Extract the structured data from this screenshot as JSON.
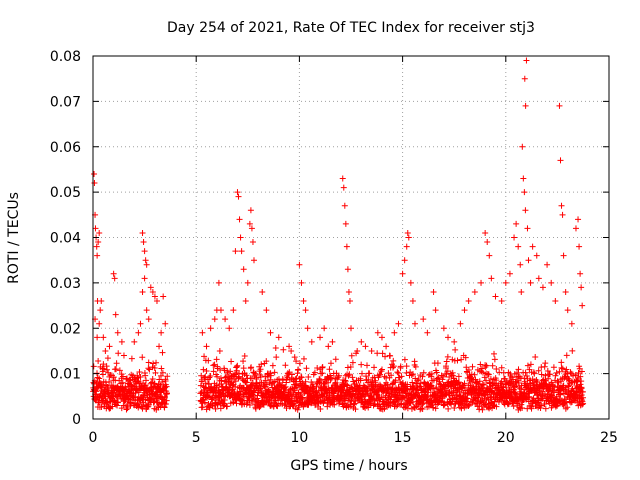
{
  "chart_data": {
    "type": "scatter",
    "title": "Day 254 of 2021, Rate Of TEC Index for receiver stj3",
    "xlabel": "GPS time / hours",
    "ylabel": "ROTI / TECUs",
    "xlim": [
      0,
      25
    ],
    "ylim": [
      0,
      0.08
    ],
    "xticks": [
      0,
      5,
      10,
      15,
      20,
      25
    ],
    "yticks": [
      0,
      0.01,
      0.02,
      0.03,
      0.04,
      0.05,
      0.06,
      0.07,
      0.08
    ],
    "xtick_labels": [
      "0",
      "5",
      "10",
      "15",
      "20",
      "25"
    ],
    "ytick_labels": [
      "0",
      "0.01",
      "0.02",
      "0.03",
      "0.04",
      "0.05",
      "0.06",
      "0.07",
      "0.08"
    ],
    "grid": true,
    "marker": "+",
    "color": "#ff0000",
    "series": [
      {
        "name": "ROTI",
        "points": [
          [
            0.05,
            0.054
          ],
          [
            0.07,
            0.052
          ],
          [
            0.1,
            0.045
          ],
          [
            0.12,
            0.042
          ],
          [
            0.15,
            0.04
          ],
          [
            0.18,
            0.038
          ],
          [
            0.2,
            0.036
          ],
          [
            0.25,
            0.039
          ],
          [
            0.3,
            0.041
          ],
          [
            0.22,
            0.026
          ],
          [
            0.35,
            0.024
          ],
          [
            0.4,
            0.026
          ],
          [
            0.1,
            0.022
          ],
          [
            0.2,
            0.018
          ],
          [
            0.3,
            0.021
          ],
          [
            0.5,
            0.018
          ],
          [
            0.6,
            0.015
          ],
          [
            0.8,
            0.016
          ],
          [
            1.0,
            0.032
          ],
          [
            1.05,
            0.031
          ],
          [
            1.1,
            0.023
          ],
          [
            1.2,
            0.019
          ],
          [
            1.4,
            0.017
          ],
          [
            1.5,
            0.014
          ],
          [
            2.4,
            0.041
          ],
          [
            2.45,
            0.039
          ],
          [
            2.5,
            0.037
          ],
          [
            2.55,
            0.035
          ],
          [
            2.6,
            0.034
          ],
          [
            2.5,
            0.031
          ],
          [
            2.4,
            0.028
          ],
          [
            2.6,
            0.024
          ],
          [
            2.7,
            0.022
          ],
          [
            2.8,
            0.029
          ],
          [
            2.9,
            0.028
          ],
          [
            3.0,
            0.027
          ],
          [
            3.1,
            0.026
          ],
          [
            3.4,
            0.027
          ],
          [
            3.5,
            0.021
          ],
          [
            2.3,
            0.021
          ],
          [
            2.2,
            0.019
          ],
          [
            2.0,
            0.017
          ],
          [
            3.2,
            0.016
          ],
          [
            3.3,
            0.019
          ],
          [
            5.3,
            0.019
          ],
          [
            5.5,
            0.016
          ],
          [
            5.7,
            0.02
          ],
          [
            5.9,
            0.022
          ],
          [
            6.0,
            0.024
          ],
          [
            6.1,
            0.03
          ],
          [
            6.2,
            0.024
          ],
          [
            6.4,
            0.022
          ],
          [
            6.6,
            0.02
          ],
          [
            6.8,
            0.024
          ],
          [
            6.9,
            0.037
          ],
          [
            7.0,
            0.05
          ],
          [
            7.05,
            0.049
          ],
          [
            7.1,
            0.044
          ],
          [
            7.15,
            0.04
          ],
          [
            7.2,
            0.037
          ],
          [
            7.3,
            0.033
          ],
          [
            7.4,
            0.026
          ],
          [
            7.5,
            0.03
          ],
          [
            7.6,
            0.043
          ],
          [
            7.65,
            0.046
          ],
          [
            7.7,
            0.042
          ],
          [
            7.75,
            0.039
          ],
          [
            7.8,
            0.035
          ],
          [
            8.2,
            0.028
          ],
          [
            8.4,
            0.024
          ],
          [
            8.6,
            0.019
          ],
          [
            9.0,
            0.018
          ],
          [
            9.5,
            0.016
          ],
          [
            9.6,
            0.015
          ],
          [
            10.0,
            0.034
          ],
          [
            10.1,
            0.03
          ],
          [
            10.2,
            0.026
          ],
          [
            10.3,
            0.024
          ],
          [
            10.4,
            0.02
          ],
          [
            10.6,
            0.017
          ],
          [
            11.0,
            0.018
          ],
          [
            11.2,
            0.02
          ],
          [
            11.4,
            0.016
          ],
          [
            11.6,
            0.017
          ],
          [
            12.1,
            0.053
          ],
          [
            12.15,
            0.051
          ],
          [
            12.2,
            0.047
          ],
          [
            12.25,
            0.043
          ],
          [
            12.3,
            0.038
          ],
          [
            12.35,
            0.033
          ],
          [
            12.4,
            0.028
          ],
          [
            12.45,
            0.026
          ],
          [
            12.5,
            0.02
          ],
          [
            12.8,
            0.015
          ],
          [
            13.0,
            0.017
          ],
          [
            13.2,
            0.016
          ],
          [
            13.5,
            0.015
          ],
          [
            13.8,
            0.019
          ],
          [
            14.0,
            0.018
          ],
          [
            14.2,
            0.016
          ],
          [
            14.6,
            0.019
          ],
          [
            14.8,
            0.021
          ],
          [
            15.0,
            0.032
          ],
          [
            15.1,
            0.035
          ],
          [
            15.2,
            0.038
          ],
          [
            15.25,
            0.041
          ],
          [
            15.3,
            0.04
          ],
          [
            15.4,
            0.03
          ],
          [
            15.5,
            0.026
          ],
          [
            15.6,
            0.021
          ],
          [
            16.0,
            0.022
          ],
          [
            16.2,
            0.019
          ],
          [
            16.5,
            0.028
          ],
          [
            16.6,
            0.024
          ],
          [
            17.0,
            0.02
          ],
          [
            17.2,
            0.018
          ],
          [
            17.5,
            0.017
          ],
          [
            17.8,
            0.021
          ],
          [
            18.0,
            0.024
          ],
          [
            18.2,
            0.026
          ],
          [
            18.5,
            0.028
          ],
          [
            18.8,
            0.03
          ],
          [
            19.0,
            0.041
          ],
          [
            19.1,
            0.039
          ],
          [
            19.2,
            0.036
          ],
          [
            19.3,
            0.031
          ],
          [
            19.5,
            0.027
          ],
          [
            19.8,
            0.026
          ],
          [
            20.0,
            0.03
          ],
          [
            20.2,
            0.032
          ],
          [
            20.4,
            0.04
          ],
          [
            20.5,
            0.043
          ],
          [
            20.6,
            0.038
          ],
          [
            20.7,
            0.034
          ],
          [
            20.75,
            0.028
          ],
          [
            20.8,
            0.06
          ],
          [
            20.85,
            0.053
          ],
          [
            20.9,
            0.05
          ],
          [
            20.95,
            0.046
          ],
          [
            21.0,
            0.079
          ],
          [
            20.92,
            0.075
          ],
          [
            20.96,
            0.069
          ],
          [
            21.05,
            0.042
          ],
          [
            21.1,
            0.035
          ],
          [
            21.2,
            0.03
          ],
          [
            21.3,
            0.038
          ],
          [
            21.5,
            0.036
          ],
          [
            21.6,
            0.031
          ],
          [
            21.8,
            0.029
          ],
          [
            22.0,
            0.034
          ],
          [
            22.2,
            0.03
          ],
          [
            22.4,
            0.026
          ],
          [
            22.6,
            0.069
          ],
          [
            22.65,
            0.057
          ],
          [
            22.7,
            0.047
          ],
          [
            22.75,
            0.045
          ],
          [
            22.8,
            0.036
          ],
          [
            22.9,
            0.028
          ],
          [
            23.0,
            0.024
          ],
          [
            23.2,
            0.021
          ],
          [
            23.4,
            0.042
          ],
          [
            23.5,
            0.044
          ],
          [
            23.55,
            0.038
          ],
          [
            23.6,
            0.032
          ],
          [
            23.65,
            0.029
          ],
          [
            23.7,
            0.025
          ]
        ],
        "dense_band": {
          "segments": [
            [
              0.0,
              3.6
            ],
            [
              5.2,
              23.75
            ]
          ],
          "y_min": 0.002,
          "y_base": 0.007,
          "y_spread": 0.01
        }
      }
    ]
  }
}
